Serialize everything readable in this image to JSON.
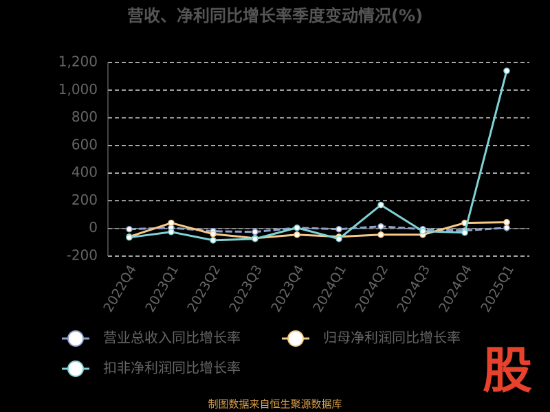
{
  "chart_data": {
    "type": "line",
    "title": "营收、净利同比增长率季度变动情况(%)",
    "categories": [
      "2022Q4",
      "2023Q1",
      "2023Q2",
      "2023Q3",
      "2023Q4",
      "2024Q1",
      "2024Q2",
      "2024Q3",
      "2024Q4",
      "2025Q1"
    ],
    "series": [
      {
        "name": "营业总收入同比增长率",
        "color": "#8fa3cf",
        "values": [
          -5,
          5,
          -20,
          -25,
          5,
          -5,
          15,
          -5,
          -15,
          5
        ]
      },
      {
        "name": "归母净利润同比增长率",
        "color": "#f6c98a",
        "values": [
          -60,
          40,
          -40,
          -70,
          -45,
          -60,
          -45,
          -45,
          40,
          45
        ]
      },
      {
        "name": "扣非净利润同比增长率",
        "color": "#7fd3d6",
        "values": [
          -65,
          -25,
          -85,
          -75,
          5,
          -75,
          170,
          -20,
          -30,
          1140
        ]
      }
    ],
    "ylim": [
      -200,
      1200
    ],
    "yticks": [
      -200,
      0,
      200,
      400,
      600,
      800,
      {
        "value": 1000,
        "label": "1,000"
      },
      {
        "value": 1200,
        "label": "1,200"
      }
    ],
    "grid": true,
    "source": "制图数据来自恒生聚源数据库",
    "logo": "股"
  }
}
